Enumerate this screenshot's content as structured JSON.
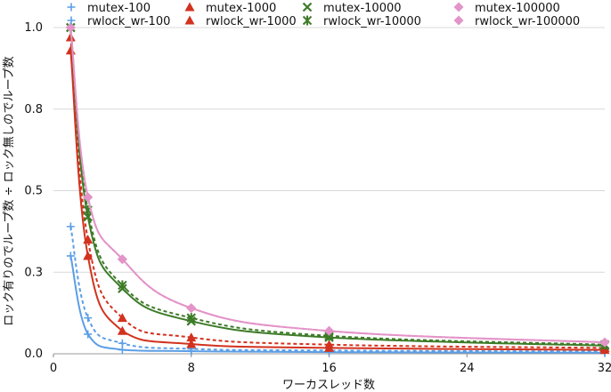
{
  "chart_data": {
    "type": "line",
    "title": "",
    "xlabel": "ワーカスレッド数",
    "ylabel": "ロック有りのでループ数 ÷ ロック無しのでループ数",
    "xlim": [
      0,
      32
    ],
    "ylim": [
      0,
      1.0
    ],
    "x_ticks": [
      "0",
      "8",
      "16",
      "24",
      "32"
    ],
    "y_ticks": [
      "0.0",
      "0.3",
      "0.5",
      "0.8",
      "1.0"
    ],
    "grid": "horizontal",
    "legend_position": "top",
    "x": [
      1,
      2,
      4,
      8,
      16,
      32
    ],
    "series": [
      {
        "name": "mutex-100",
        "color": "#5b9ee6",
        "marker": "plus",
        "dash": false,
        "values": [
          0.3,
          0.06,
          0.012,
          0.008,
          0.005,
          0.003
        ]
      },
      {
        "name": "rwlock_wr-100",
        "color": "#5b9ee6",
        "marker": "plus",
        "dash": true,
        "values": [
          0.39,
          0.11,
          0.032,
          0.015,
          0.01,
          0.007
        ]
      },
      {
        "name": "mutex-1000",
        "color": "#d2321e",
        "marker": "triangle",
        "dash": false,
        "values": [
          0.93,
          0.3,
          0.07,
          0.03,
          0.018,
          0.012
        ]
      },
      {
        "name": "rwlock_wr-1000",
        "color": "#d2321e",
        "marker": "triangle",
        "dash": true,
        "values": [
          0.97,
          0.35,
          0.11,
          0.05,
          0.028,
          0.018
        ]
      },
      {
        "name": "mutex-10000",
        "color": "#3d7b28",
        "marker": "x",
        "dash": false,
        "values": [
          1.0,
          0.42,
          0.2,
          0.1,
          0.05,
          0.025
        ]
      },
      {
        "name": "rwlock_wr-10000",
        "color": "#3d7b28",
        "marker": "star",
        "dash": true,
        "values": [
          1.0,
          0.44,
          0.21,
          0.11,
          0.055,
          0.028
        ]
      },
      {
        "name": "mutex-100000",
        "color": "#e394c8",
        "marker": "diamond",
        "dash": false,
        "values": [
          1.0,
          0.48,
          0.29,
          0.14,
          0.07,
          0.035
        ]
      },
      {
        "name": "rwlock_wr-100000",
        "color": "#e394c8",
        "marker": "diamond",
        "dash": true,
        "values": [
          1.0,
          0.48,
          0.29,
          0.14,
          0.07,
          0.035
        ]
      }
    ]
  }
}
